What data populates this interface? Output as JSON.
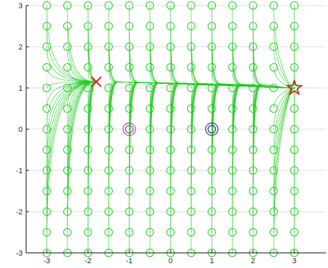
{
  "chart_data": {
    "type": "scatter",
    "title": "",
    "xlabel": "",
    "ylabel": "",
    "xlim": [
      -3,
      3
    ],
    "ylim": [
      -3,
      3
    ],
    "xticks": [
      "-3",
      "-2",
      "-1",
      "0",
      "1",
      "2",
      "3"
    ],
    "yticks": [
      "-3",
      "-2",
      "-1",
      "0",
      "1",
      "2",
      "3"
    ],
    "grid": true,
    "start_grid": {
      "x": [
        -3,
        -2.5,
        -2,
        -1.5,
        -1,
        -0.5,
        0,
        0.5,
        1,
        1.5,
        2,
        2.5,
        3
      ],
      "y": [
        -3,
        -2.5,
        -2,
        -1.5,
        -1,
        -0.5,
        0,
        0.5,
        1,
        1.5,
        2,
        2.5,
        3
      ]
    },
    "series": [
      {
        "marker": "circle",
        "points": "start positions (13 x 13 grid)"
      },
      {
        "marker": "double-circle",
        "x": -1,
        "y": 0
      },
      {
        "marker": "double-circle",
        "x": 1,
        "y": 0
      },
      {
        "marker": "x-cross",
        "x": -1.8,
        "y": 1.15
      },
      {
        "marker": "star",
        "x": 3,
        "y": 1
      }
    ],
    "colors": {
      "trajectory": "#22cc22",
      "start_marker": "#22cc22",
      "repeller": "#b040b0",
      "attractor": "#2030a0",
      "x_marker": "#e02020",
      "star_marker": "#d01010",
      "axis": "#000000",
      "grid": "#dcdcdc"
    }
  }
}
